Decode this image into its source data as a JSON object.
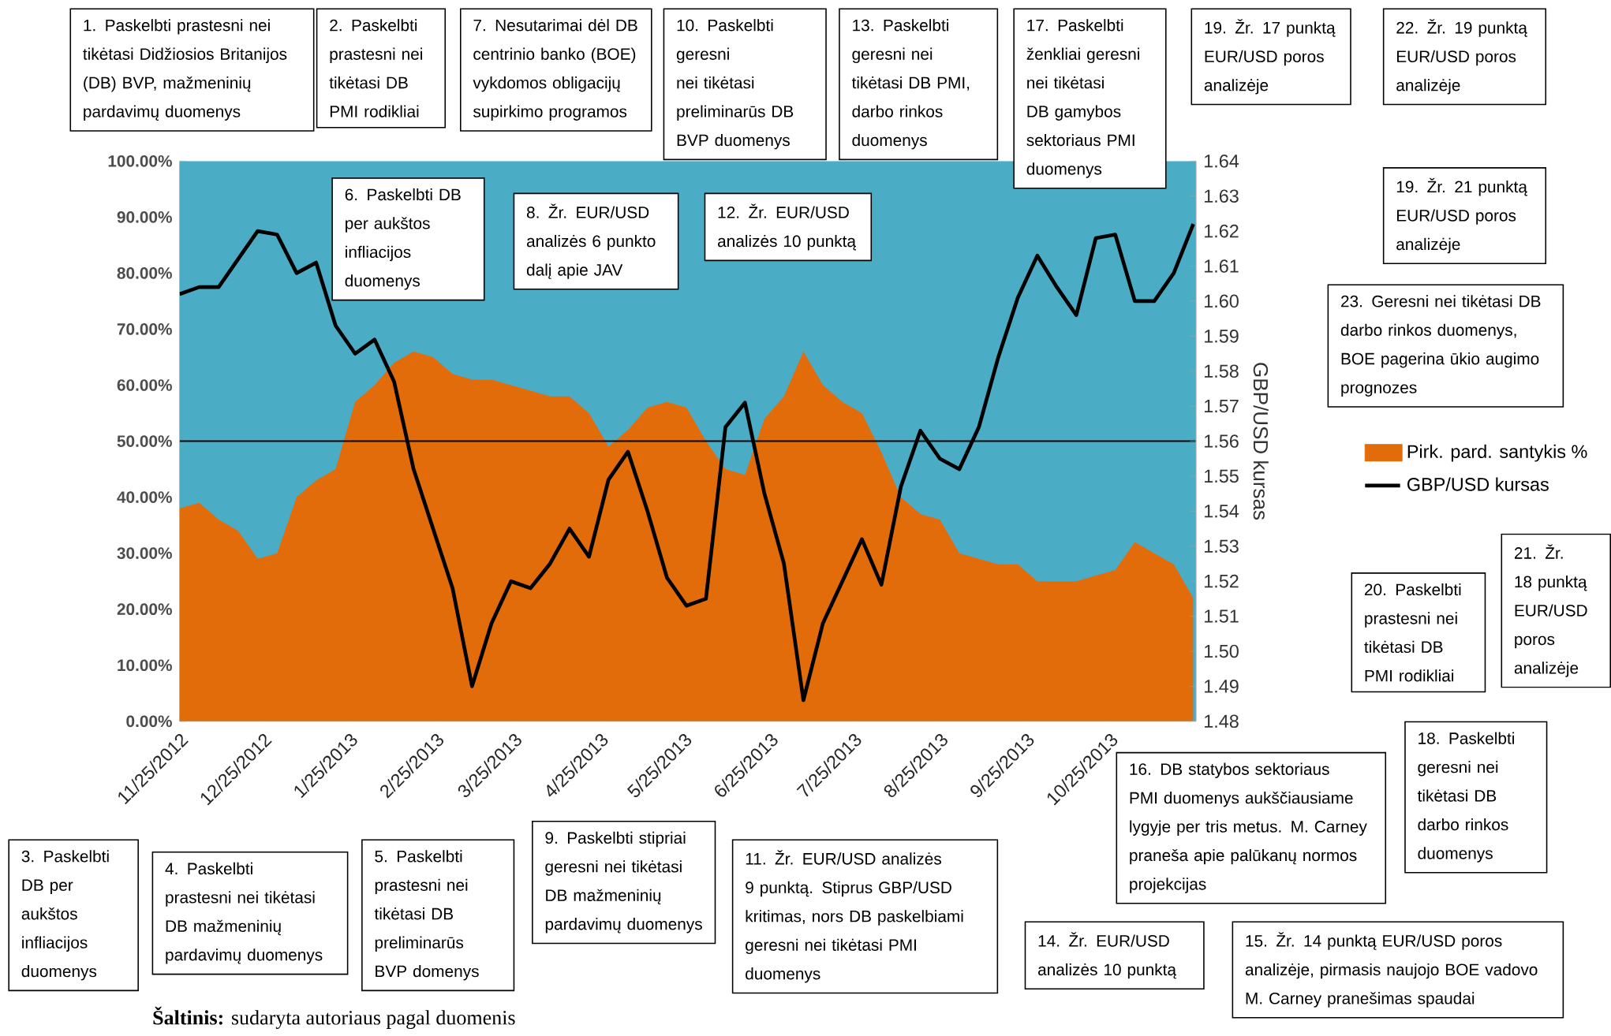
{
  "chart_data": {
    "type": "area",
    "legend": "right",
    "y2label": "GBP/USD kursas",
    "x": [
      "2012-11-25",
      "2012-12-02",
      "2012-12-09",
      "2012-12-16",
      "2012-12-23",
      "2012-12-30",
      "2013-01-06",
      "2013-01-13",
      "2013-01-20",
      "2013-01-27",
      "2013-02-03",
      "2013-02-10",
      "2013-02-17",
      "2013-02-24",
      "2013-03-03",
      "2013-03-10",
      "2013-03-17",
      "2013-03-24",
      "2013-03-31",
      "2013-04-07",
      "2013-04-14",
      "2013-04-21",
      "2013-04-28",
      "2013-05-05",
      "2013-05-12",
      "2013-05-19",
      "2013-05-26",
      "2013-06-02",
      "2013-06-09",
      "2013-06-16",
      "2013-06-23",
      "2013-06-30",
      "2013-07-07",
      "2013-07-14",
      "2013-07-21",
      "2013-07-28",
      "2013-08-04",
      "2013-08-11",
      "2013-08-18",
      "2013-08-25",
      "2013-09-01",
      "2013-09-08",
      "2013-09-15",
      "2013-09-22",
      "2013-09-29",
      "2013-10-06",
      "2013-10-13",
      "2013-10-20",
      "2013-10-27",
      "2013-11-03",
      "2013-11-10",
      "2013-11-17",
      "2013-11-24"
    ],
    "series": [
      {
        "name": "Pirk. pard. santykis %",
        "color": "#e36c0a",
        "values": [
          38,
          39,
          36,
          34,
          29,
          30,
          40,
          43,
          45,
          57,
          60,
          64,
          66,
          65,
          62,
          61,
          61,
          60,
          59,
          58,
          58,
          55,
          49,
          52,
          56,
          57,
          56,
          50,
          45,
          44,
          54,
          58,
          66,
          60,
          57,
          55,
          48,
          40,
          37,
          36,
          30,
          29,
          28,
          28,
          25,
          25,
          25,
          26,
          27,
          32,
          30,
          28,
          22
        ]
      },
      {
        "name": "GBP/USD kursas",
        "type": "line",
        "axis": "y2",
        "color": "#000000",
        "values": [
          1.602,
          1.604,
          1.604,
          1.612,
          1.62,
          1.619,
          1.608,
          1.611,
          1.593,
          1.585,
          1.589,
          1.577,
          1.552,
          1.535,
          1.518,
          1.49,
          1.508,
          1.52,
          1.518,
          1.525,
          1.535,
          1.527,
          1.549,
          1.557,
          1.54,
          1.521,
          1.513,
          1.515,
          1.564,
          1.571,
          1.545,
          1.525,
          1.486,
          1.508,
          1.52,
          1.532,
          1.519,
          1.547,
          1.563,
          1.555,
          1.552,
          1.564,
          1.584,
          1.601,
          1.613,
          1.604,
          1.596,
          1.618,
          1.619,
          1.6,
          1.6,
          1.608,
          1.622
        ]
      }
    ],
    "xlim": [
      "2012-11-25",
      "2013-11-25"
    ],
    "xticks": [
      {
        "value": "2012-11-25",
        "label": "11/25/2012"
      },
      {
        "value": "2012-12-25",
        "label": "12/25/2012"
      },
      {
        "value": "2013-01-25",
        "label": "1/25/2013"
      },
      {
        "value": "2013-02-25",
        "label": "2/25/2013"
      },
      {
        "value": "2013-03-25",
        "label": "3/25/2013"
      },
      {
        "value": "2013-04-25",
        "label": "4/25/2013"
      },
      {
        "value": "2013-05-25",
        "label": "5/25/2013"
      },
      {
        "value": "2013-06-25",
        "label": "6/25/2013"
      },
      {
        "value": "2013-07-25",
        "label": "7/25/2013"
      },
      {
        "value": "2013-08-25",
        "label": "8/25/2013"
      },
      {
        "value": "2013-09-25",
        "label": "9/25/2013"
      },
      {
        "value": "2013-10-25",
        "label": "10/25/2013"
      }
    ],
    "ylim": [
      0,
      100
    ],
    "yticks": [
      {
        "value": 0,
        "label": "0.00%"
      },
      {
        "value": 10,
        "label": "10.00%"
      },
      {
        "value": 20,
        "label": "20.00%"
      },
      {
        "value": 30,
        "label": "30.00%"
      },
      {
        "value": 40,
        "label": "40.00%"
      },
      {
        "value": 50,
        "label": "50.00%"
      },
      {
        "value": 60,
        "label": "60.00%"
      },
      {
        "value": 70,
        "label": "70.00%"
      },
      {
        "value": 80,
        "label": "80.00%"
      },
      {
        "value": 90,
        "label": "90.00%"
      },
      {
        "value": 100,
        "label": "100.00%"
      }
    ],
    "y2lim": [
      1.48,
      1.64
    ],
    "y2ticks": [
      1.48,
      1.49,
      {
        "value": 1.5,
        "label": "1.50"
      },
      1.51,
      1.52,
      1.53,
      1.54,
      1.55,
      1.56,
      1.57,
      1.58,
      1.59,
      {
        "value": 1.6,
        "label": "1.60"
      },
      1.61,
      1.62,
      1.63,
      1.64
    ],
    "ref_lines": [
      {
        "axis": "y",
        "value": 50
      }
    ],
    "bands": [
      {
        "axis": "y",
        "from": 0,
        "to": 100,
        "color": "#4bacc6"
      }
    ],
    "annotations": [
      "1. Paskelbti prastesni nei tikėtasi Didžiosios Britanijos (DB) BVP, mažmeninių pardavimų duomenys",
      "2. Paskelbti prastesni nei tikėtasi DB PMI rodikliai",
      "3. Paskelbti DB per aukštos infliacijos duomenys",
      "4. Paskelbti prastesni nei tikėtasi DB mažmeninių pardavimų duomenys",
      "5. Paskelbti prastesni nei tikėtasi DB preliminarūs BVP domenys",
      "6. Paskelbti DB per aukštos infliacijos duomenys",
      "7. Nesutarimai dėl DB centrinio banko (BOE) vykdomos obligacijų supirkimo programos",
      "8. Žr. EUR/USD analizės 6 punkto dalį apie JAV",
      "9. Paskelbti stipriai geresni nei tikėtasi DB mažmeninių pardavimų duomenys",
      "10. Paskelbti geresni nei tikėtasi preliminarūs DB BVP duomenys",
      "11. Žr. EUR/USD analizės 9 punktą. Stiprus GBP/USD kritimas, nors DB paskelbiami geresni nei tikėtasi PMI duomenys",
      "12. Žr. EUR/USD analizės 10 punktą",
      "13. Paskelbti geresni nei tikėtasi DB PMI, darbo rinkos duomenys",
      "14. Žr. EUR/USD analizės 10 punktą",
      "15. Žr. 14 punktą EUR/USD poros analizėje, pirmasis naujojo BOE vadovo M. Carney pranešimas spaudai",
      "16. DB statybos sektoriaus PMI duomenys aukščiausiame lygyje per tris metus. M. Carney praneša apie palūkanų normos projekcijas",
      "17. Paskelbti ženkliai geresni nei tikėtasi DB gamybos sektoriaus PMI duomenys",
      "18. Paskelbti geresni nei tikėtasi DB darbo rinkos duomenys",
      "19. Žr. 17 punktą EUR/USD poros analizėje",
      "19. Žr. 21 punktą EUR/USD poros analizėje",
      "20. Paskelbti prastesni nei tikėtasi DB PMI rodikliai",
      "21. Žr. 18 punktą EUR/USD poros analizėje",
      "22. Žr. 19 punktą EUR/USD poros analizėje",
      "23. Geresni nei tikėtasi DB darbo rinkos duomenys, BOE pagerina ūkio augimo prognozes",
      "**Šaltinis:** sudaryta autoriaus pagal duomenis"
    ]
  }
}
